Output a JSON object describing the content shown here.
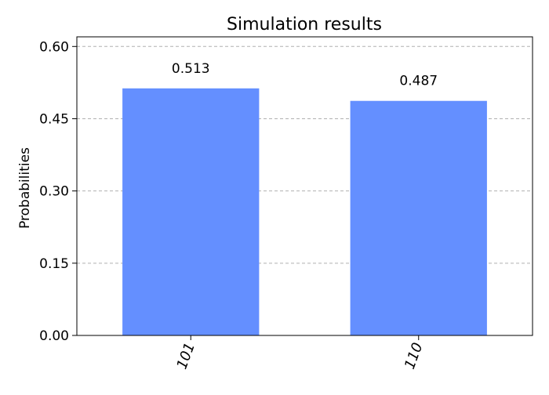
{
  "chart_data": {
    "type": "bar",
    "title": "Simulation results",
    "xlabel": "",
    "ylabel": "Probabilities",
    "categories": [
      "101",
      "110"
    ],
    "values": [
      0.513,
      0.487
    ],
    "value_labels": [
      "0.513",
      "0.487"
    ],
    "ylim": [
      0,
      0.62
    ],
    "yticks": [
      0.0,
      0.15,
      0.3,
      0.45,
      0.6
    ],
    "ytick_labels": [
      "0.00",
      "0.15",
      "0.30",
      "0.45",
      "0.60"
    ],
    "grid": "horizontal dashed",
    "x_tick_rotation": "70 degrees",
    "bar_color": "#648fff",
    "grid_color": "#b0b0b0"
  }
}
